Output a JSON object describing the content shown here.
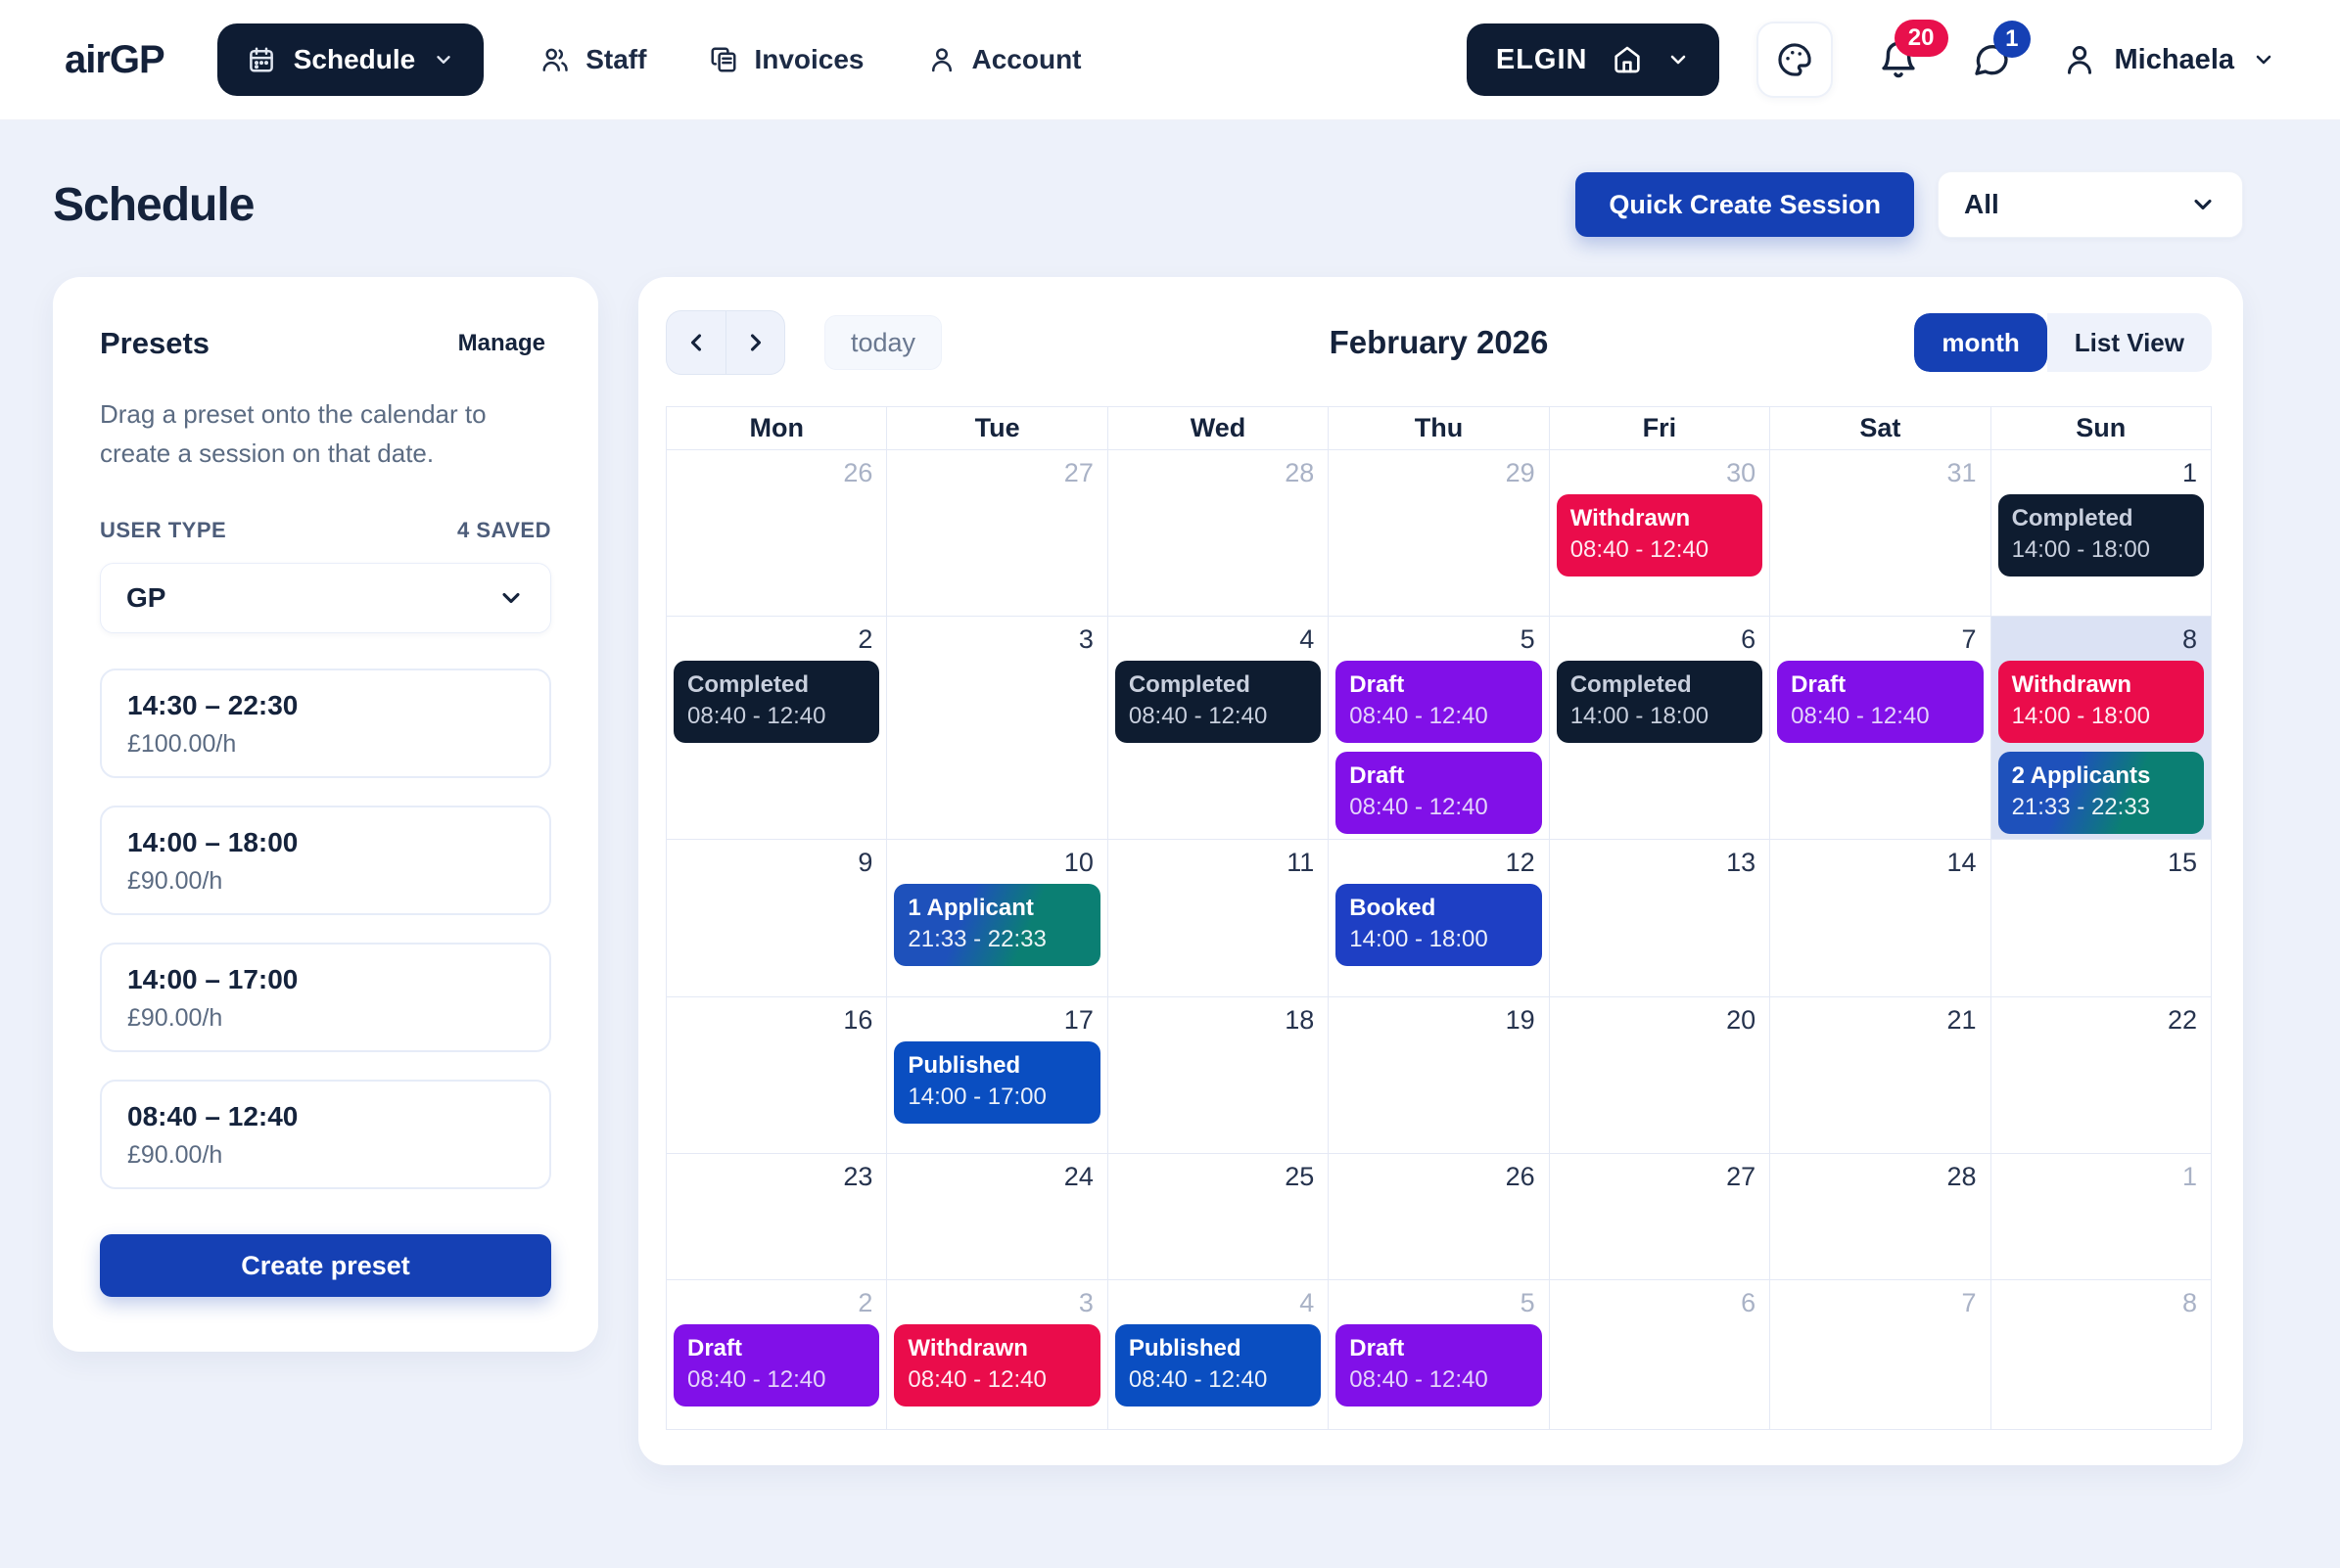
{
  "colors": {
    "primary": "#1540b4",
    "dark_navy": "#0e1c33",
    "badge_red": "#e8104c",
    "badge_blue": "#1540b4",
    "event_completed": "#0e1c30",
    "event_withdrawn": "#ea0c4b",
    "event_draft": "#8110e8",
    "event_booked": "#1e3fc4",
    "event_published": "#0a4ec1",
    "event_applicant_from": "#1e51bb",
    "event_applicant_to": "#0b7f73",
    "today_cell": "#dbe2f4",
    "page_bg": "#edf1fa"
  },
  "icons": {
    "schedule": "calendar-icon",
    "staff": "people-icon",
    "invoices": "documents-icon",
    "account": "person-icon",
    "practice": "home-icon",
    "theme": "palette-icon",
    "notifications": "bell-icon",
    "messages": "chat-bubble-icon",
    "user": "person-icon",
    "dropdown": "chevron-down-icon",
    "prev": "chevron-left-icon",
    "next": "chevron-right-icon"
  },
  "header": {
    "logo": "airGP",
    "nav": {
      "schedule": "Schedule",
      "staff": "Staff",
      "invoices": "Invoices",
      "account": "Account"
    },
    "practice": "ELGIN",
    "notifications_count": "20",
    "messages_count": "1",
    "user_name": "Michaela"
  },
  "page": {
    "title": "Schedule",
    "quick_create_label": "Quick Create Session",
    "filter_value": "All"
  },
  "presets": {
    "title": "Presets",
    "manage_label": "Manage",
    "description": "Drag a preset onto the calendar to create a session on that date.",
    "user_type_label": "USER TYPE",
    "saved_count_label": "4 SAVED",
    "user_type_value": "GP",
    "items": [
      {
        "time": "14:30 – 22:30",
        "rate": "£100.00/h"
      },
      {
        "time": "14:00 – 18:00",
        "rate": "£90.00/h"
      },
      {
        "time": "14:00 – 17:00",
        "rate": "£90.00/h"
      },
      {
        "time": "08:40 – 12:40",
        "rate": "£90.00/h"
      }
    ],
    "create_label": "Create preset"
  },
  "calendar": {
    "title": "February 2026",
    "today_label": "today",
    "views": {
      "month": "month",
      "list": "List View"
    },
    "day_headers": [
      "Mon",
      "Tue",
      "Wed",
      "Thu",
      "Fri",
      "Sat",
      "Sun"
    ],
    "weeks": [
      [
        {
          "day": "26",
          "other": true
        },
        {
          "day": "27",
          "other": true
        },
        {
          "day": "28",
          "other": true
        },
        {
          "day": "29",
          "other": true
        },
        {
          "day": "30",
          "other": true,
          "events": [
            {
              "status": "Withdrawn",
              "time": "08:40 - 12:40",
              "type": "withdrawn"
            }
          ]
        },
        {
          "day": "31",
          "other": true
        },
        {
          "day": "1",
          "events": [
            {
              "status": "Completed",
              "time": "14:00 - 18:00",
              "type": "completed"
            }
          ]
        }
      ],
      [
        {
          "day": "2",
          "events": [
            {
              "status": "Completed",
              "time": "08:40 - 12:40",
              "type": "completed"
            }
          ]
        },
        {
          "day": "3"
        },
        {
          "day": "4",
          "events": [
            {
              "status": "Completed",
              "time": "08:40 - 12:40",
              "type": "completed"
            }
          ]
        },
        {
          "day": "5",
          "events": [
            {
              "status": "Draft",
              "time": "08:40 - 12:40",
              "type": "draft"
            },
            {
              "status": "Draft",
              "time": "08:40 - 12:40",
              "type": "draft"
            }
          ]
        },
        {
          "day": "6",
          "events": [
            {
              "status": "Completed",
              "time": "14:00 - 18:00",
              "type": "completed"
            }
          ]
        },
        {
          "day": "7",
          "events": [
            {
              "status": "Draft",
              "time": "08:40 - 12:40",
              "type": "draft"
            }
          ]
        },
        {
          "day": "8",
          "today": true,
          "events": [
            {
              "status": "Withdrawn",
              "time": "14:00 - 18:00",
              "type": "withdrawn"
            },
            {
              "status": "2 Applicants",
              "time": "21:33 - 22:33",
              "type": "applicants"
            }
          ]
        }
      ],
      [
        {
          "day": "9"
        },
        {
          "day": "10",
          "events": [
            {
              "status": "1 Applicant",
              "time": "21:33 - 22:33",
              "type": "applicants"
            }
          ]
        },
        {
          "day": "11"
        },
        {
          "day": "12",
          "events": [
            {
              "status": "Booked",
              "time": "14:00 - 18:00",
              "type": "booked"
            }
          ]
        },
        {
          "day": "13"
        },
        {
          "day": "14"
        },
        {
          "day": "15"
        }
      ],
      [
        {
          "day": "16"
        },
        {
          "day": "17",
          "events": [
            {
              "status": "Published",
              "time": "14:00 - 17:00",
              "type": "published"
            }
          ]
        },
        {
          "day": "18"
        },
        {
          "day": "19"
        },
        {
          "day": "20"
        },
        {
          "day": "21"
        },
        {
          "day": "22"
        }
      ],
      [
        {
          "day": "23"
        },
        {
          "day": "24"
        },
        {
          "day": "25"
        },
        {
          "day": "26"
        },
        {
          "day": "27"
        },
        {
          "day": "28"
        },
        {
          "day": "1",
          "other": true
        }
      ],
      [
        {
          "day": "2",
          "other": true,
          "events": [
            {
              "status": "Draft",
              "time": "08:40 - 12:40",
              "type": "draft"
            }
          ]
        },
        {
          "day": "3",
          "other": true,
          "events": [
            {
              "status": "Withdrawn",
              "time": "08:40 - 12:40",
              "type": "withdrawn"
            }
          ]
        },
        {
          "day": "4",
          "other": true,
          "events": [
            {
              "status": "Published",
              "time": "08:40 - 12:40",
              "type": "published"
            }
          ]
        },
        {
          "day": "5",
          "other": true,
          "events": [
            {
              "status": "Draft",
              "time": "08:40 - 12:40",
              "type": "draft"
            }
          ]
        },
        {
          "day": "6",
          "other": true
        },
        {
          "day": "7",
          "other": true
        },
        {
          "day": "8",
          "other": true
        }
      ]
    ]
  }
}
